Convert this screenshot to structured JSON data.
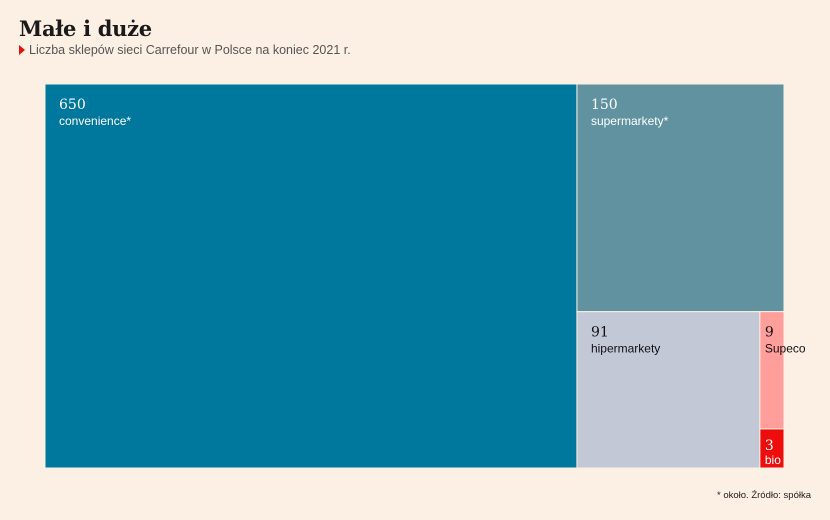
{
  "header": {
    "title": "Małe i duże",
    "subtitle": "Liczba sklepów sieci Carrefour w Polsce na koniec 2021 r."
  },
  "footnote": "* około. Źródło: spółka",
  "chart_data": {
    "type": "treemap",
    "title": "Małe i duże",
    "subtitle": "Liczba sklepów sieci Carrefour w Polsce na koniec 2021 r.",
    "items": [
      {
        "label": "convenience*",
        "value": 650,
        "value_label": "650",
        "color": "#00789e",
        "text_color": "#ffffff"
      },
      {
        "label": "supermarkety*",
        "value": 150,
        "value_label": "150",
        "color": "#6192a0",
        "text_color": "#ffffff"
      },
      {
        "label": "hipermarkety",
        "value": 91,
        "value_label": "91",
        "color": "#c2c8d6",
        "text_color": "#111111"
      },
      {
        "label": "Supeco",
        "value": 9,
        "value_label": "9",
        "color": "#ff9e9b",
        "text_color": "#111111"
      },
      {
        "label": "bio",
        "value": 3,
        "value_label": "3",
        "color": "#ee0d0d",
        "text_color": "#ffffff"
      }
    ]
  }
}
